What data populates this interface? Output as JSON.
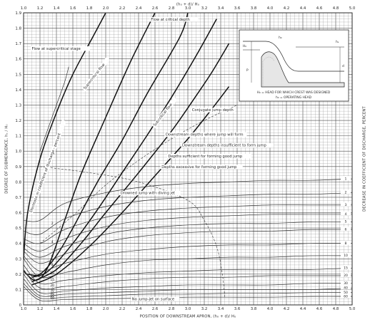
{
  "chart_data": {
    "type": "line",
    "top_axis_label": "(h₀ + d)/ H₀",
    "xlabel": "POSITION OF DOWNSTREAM APRON, (h₀ + d)/ H₀",
    "ylabel": "DEGREE OF SUBMERGENCE, hₛ / H₀",
    "right_axis_label": "DECREASE IN COEFFICIENT OF DISCHARGE, PERCENT",
    "x_ticks": [
      "1.0",
      "1.2",
      "1.4",
      "1.6",
      "1.8",
      "2.0",
      "2.2",
      "2.4",
      "2.6",
      "2.8",
      "3.0",
      "3.2",
      "3.4",
      "3.6",
      "3.8",
      "4.0",
      "4.2",
      "4.4",
      "4.6",
      "4.8",
      "5.0"
    ],
    "y_ticks": [
      "0",
      "0.1",
      "0.2",
      "0.3",
      "0.4",
      "0.5",
      "0.6",
      "0.7",
      "0.8",
      "0.9",
      "1.0",
      "1.1",
      "1.2",
      "1.3",
      "1.4",
      "1.5",
      "1.6",
      "1.7",
      "1.8",
      "1.9"
    ],
    "xlim": [
      1.0,
      5.0
    ],
    "ylim": [
      0,
      1.9
    ],
    "grid": true,
    "right_contour_labels": [
      "1",
      "2",
      "3",
      "4",
      "5",
      "6",
      "8",
      "10",
      "15",
      "20",
      "30",
      "40",
      "50",
      "60"
    ],
    "left_contour_labels": [
      "2",
      "4",
      "6",
      "8",
      "10",
      "15",
      "20",
      "30",
      "40",
      "50",
      "60"
    ],
    "series": [
      {
        "name": "Flow at critical depth",
        "style": "heavy",
        "x": [
          1.0,
          1.15,
          1.3,
          1.5,
          1.7,
          2.0,
          2.3,
          2.6
        ],
        "y": [
          0.22,
          0.16,
          0.25,
          0.55,
          0.85,
          1.22,
          1.58,
          1.9
        ]
      },
      {
        "style": "heavy",
        "x": [
          1.05,
          1.2,
          1.4,
          1.6,
          1.9,
          2.2,
          2.5,
          2.9,
          3.0
        ],
        "y": [
          0.2,
          0.2,
          0.32,
          0.5,
          0.8,
          1.07,
          1.37,
          1.74,
          1.9
        ]
      },
      {
        "style": "heavy",
        "x": [
          1.1,
          1.3,
          1.6,
          1.9,
          2.2,
          2.5,
          2.8,
          3.1,
          3.35
        ],
        "y": [
          0.18,
          0.22,
          0.4,
          0.62,
          0.86,
          1.1,
          1.35,
          1.62,
          1.86
        ]
      },
      {
        "style": "heavy",
        "x": [
          1.1,
          1.4,
          1.7,
          2.0,
          2.4,
          2.8,
          3.1,
          3.3,
          3.5
        ],
        "y": [
          0.15,
          0.23,
          0.4,
          0.6,
          0.86,
          1.13,
          1.36,
          1.52,
          1.7
        ]
      },
      {
        "style": "heavy",
        "x": [
          1.1,
          1.4,
          1.8,
          2.2,
          2.6,
          3.0,
          3.3,
          3.5
        ],
        "y": [
          0.13,
          0.2,
          0.38,
          0.6,
          0.84,
          1.08,
          1.28,
          1.42
        ]
      },
      {
        "name": "Flow at supercritical stage",
        "style": "heavy",
        "x": [
          1.0,
          1.05,
          1.2,
          1.4,
          1.6,
          1.85,
          2.0
        ],
        "y": [
          0.3,
          0.6,
          0.95,
          1.25,
          1.5,
          1.75,
          1.9
        ]
      },
      {
        "name": "Conjugate jump depth",
        "style": "dash",
        "x": [
          1.2,
          1.6,
          2.0,
          2.4,
          2.8,
          3.2,
          3.6
        ],
        "y": [
          0.4,
          0.58,
          0.78,
          0.94,
          1.08,
          1.2,
          1.3
        ]
      },
      {
        "name": "Decrease in coefficient of discharge, percent",
        "style": "light",
        "x": [
          1.2,
          1.3,
          1.4,
          1.5,
          1.55
        ],
        "y": [
          1.0,
          1.15,
          1.3,
          1.45,
          1.55
        ]
      },
      {
        "name": "1",
        "style": "light",
        "x": [
          1.0,
          1.2,
          1.5,
          2.0,
          2.5,
          3.0,
          3.5,
          4.0,
          4.5,
          5.0
        ],
        "y": [
          0.55,
          0.55,
          0.66,
          0.73,
          0.77,
          0.79,
          0.8,
          0.81,
          0.81,
          0.82
        ]
      },
      {
        "name": "2",
        "style": "light",
        "x": [
          1.0,
          1.2,
          1.5,
          2.0,
          2.5,
          3.0,
          3.5,
          4.0,
          4.5,
          5.0
        ],
        "y": [
          0.48,
          0.46,
          0.56,
          0.64,
          0.68,
          0.7,
          0.71,
          0.72,
          0.72,
          0.73
        ]
      },
      {
        "name": "3",
        "style": "light",
        "x": [
          1.0,
          1.2,
          1.5,
          2.0,
          2.5,
          3.0,
          3.5,
          4.0,
          4.5,
          5.0
        ],
        "y": [
          0.43,
          0.4,
          0.49,
          0.57,
          0.61,
          0.63,
          0.64,
          0.65,
          0.65,
          0.65
        ]
      },
      {
        "name": "4",
        "style": "light",
        "x": [
          1.0,
          1.2,
          1.5,
          2.0,
          2.5,
          3.0,
          3.5,
          4.0,
          4.5,
          5.0
        ],
        "y": [
          0.4,
          0.35,
          0.43,
          0.51,
          0.55,
          0.57,
          0.58,
          0.59,
          0.59,
          0.59
        ]
      },
      {
        "name": "5",
        "style": "light",
        "x": [
          1.0,
          1.2,
          1.5,
          2.0,
          2.5,
          3.0,
          3.5,
          4.0,
          4.5,
          5.0
        ],
        "y": [
          0.37,
          0.31,
          0.38,
          0.46,
          0.5,
          0.52,
          0.53,
          0.53,
          0.54,
          0.54
        ]
      },
      {
        "name": "6",
        "style": "light",
        "x": [
          1.0,
          1.2,
          1.5,
          2.0,
          2.5,
          3.0,
          3.5,
          4.0,
          4.5,
          5.0
        ],
        "y": [
          0.35,
          0.27,
          0.33,
          0.41,
          0.45,
          0.47,
          0.48,
          0.48,
          0.49,
          0.49
        ]
      },
      {
        "name": "8",
        "style": "light",
        "x": [
          1.0,
          1.2,
          1.5,
          2.0,
          2.5,
          3.0,
          3.5,
          4.0,
          4.5,
          5.0
        ],
        "y": [
          0.32,
          0.22,
          0.27,
          0.33,
          0.36,
          0.38,
          0.39,
          0.39,
          0.4,
          0.4
        ]
      },
      {
        "name": "10",
        "style": "light",
        "x": [
          1.0,
          1.2,
          1.5,
          2.0,
          2.5,
          3.0,
          3.5,
          4.0,
          4.5,
          5.0
        ],
        "y": [
          0.3,
          0.18,
          0.21,
          0.26,
          0.29,
          0.3,
          0.31,
          0.31,
          0.32,
          0.32
        ]
      },
      {
        "name": "15",
        "style": "light",
        "x": [
          1.0,
          1.2,
          1.5,
          2.0,
          2.5,
          3.0,
          3.5,
          4.0,
          4.5,
          5.0
        ],
        "y": [
          0.26,
          0.14,
          0.16,
          0.19,
          0.21,
          0.22,
          0.23,
          0.23,
          0.23,
          0.24
        ]
      },
      {
        "name": "20",
        "style": "light",
        "x": [
          1.0,
          1.2,
          1.5,
          2.0,
          2.5,
          3.0,
          3.5,
          4.0,
          4.5,
          5.0
        ],
        "y": [
          0.23,
          0.11,
          0.12,
          0.15,
          0.17,
          0.18,
          0.18,
          0.19,
          0.19,
          0.19
        ]
      },
      {
        "name": "30",
        "style": "light",
        "x": [
          1.0,
          1.2,
          1.5,
          2.0,
          2.5,
          3.0,
          3.5,
          4.0,
          4.5,
          5.0
        ],
        "y": [
          0.2,
          0.08,
          0.09,
          0.11,
          0.12,
          0.13,
          0.13,
          0.13,
          0.14,
          0.14
        ]
      },
      {
        "name": "40",
        "style": "light",
        "x": [
          1.0,
          1.2,
          1.5,
          2.0,
          2.5,
          3.0,
          3.5,
          4.0,
          4.5,
          5.0
        ],
        "y": [
          0.17,
          0.06,
          0.07,
          0.08,
          0.09,
          0.1,
          0.1,
          0.1,
          0.1,
          0.11
        ]
      },
      {
        "name": "50",
        "style": "light",
        "x": [
          1.0,
          1.2,
          1.5,
          2.0,
          2.5,
          3.0,
          3.5,
          4.0,
          4.5,
          5.0
        ],
        "y": [
          0.14,
          0.045,
          0.05,
          0.06,
          0.07,
          0.07,
          0.075,
          0.075,
          0.08,
          0.08
        ]
      },
      {
        "name": "60",
        "style": "light",
        "x": [
          1.0,
          1.2,
          1.5,
          2.0,
          2.5,
          3.0,
          3.5,
          4.0,
          4.5,
          5.0
        ],
        "y": [
          0.12,
          0.03,
          0.035,
          0.04,
          0.045,
          0.05,
          0.05,
          0.05,
          0.055,
          0.055
        ]
      },
      {
        "name": "Drowned jump with diving jet",
        "style": "dash",
        "x": [
          1.2,
          1.8,
          2.4,
          3.0,
          3.2,
          3.35,
          3.42,
          3.45
        ],
        "y": [
          0.9,
          0.86,
          0.8,
          0.68,
          0.55,
          0.38,
          0.2,
          0.05
        ]
      }
    ],
    "annotations": [
      {
        "text": "Flow at critical depth",
        "x": 2.55,
        "y": 1.85
      },
      {
        "text": "Flow at supercritical stage",
        "x": 1.1,
        "y": 1.66
      },
      {
        "text": "Supercritical flow",
        "x": 1.75,
        "y": 1.4,
        "rotate": -52
      },
      {
        "text": "Subcritical flow",
        "x": 2.6,
        "y": 1.16,
        "rotate": -52
      },
      {
        "text": "Conjugate jump depth",
        "x": 3.05,
        "y": 1.26
      },
      {
        "text": "Downstream depths where jump will form",
        "x": 2.73,
        "y": 1.1
      },
      {
        "text": "Downstream depths insufficient to form jump",
        "x": 2.93,
        "y": 1.03
      },
      {
        "text": "Depths sufficient for forming good jump",
        "x": 2.76,
        "y": 0.96
      },
      {
        "text": "Depths excessive for forming good jump",
        "x": 2.68,
        "y": 0.89
      },
      {
        "text": "Drowned jump with diving jet",
        "x": 2.18,
        "y": 0.72
      },
      {
        "text": "No jump-jet on surface",
        "x": 2.32,
        "y": 0.03
      },
      {
        "text": "Decrease in coefficient of discharge - percent",
        "x": 1.1,
        "y": 0.6,
        "rotate": -70
      }
    ],
    "inset": {
      "labels": [
        "h₀",
        "H₀",
        "hₛ",
        "P",
        "d",
        "H₀ = HEAD FOR WHICH CREST WAS DESIGNED",
        "h₀ = OPERATING HEAD"
      ]
    }
  }
}
